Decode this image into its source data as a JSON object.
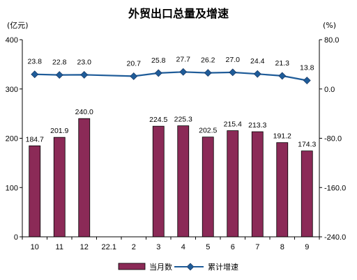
{
  "chart_data": {
    "type": "bar+line",
    "title": "外贸出口总量及增速",
    "left_axis_unit": "(亿元)",
    "right_axis_unit": "(%)",
    "categories": [
      "10",
      "11",
      "12",
      "22.1",
      "2",
      "3",
      "4",
      "5",
      "6",
      "7",
      "8",
      "9"
    ],
    "series": [
      {
        "name": "当月数",
        "kind": "bar",
        "axis": "left",
        "color": "#8B2A57",
        "values": [
          184.7,
          201.9,
          240.0,
          null,
          null,
          224.5,
          225.3,
          202.5,
          215.4,
          213.3,
          191.2,
          174.3
        ],
        "labels": [
          "184.7",
          "201.9",
          "240.0",
          "",
          "",
          "224.5",
          "225.3",
          "202.5",
          "215.4",
          "213.3",
          "191.2",
          "174.3"
        ]
      },
      {
        "name": "累计增速",
        "kind": "line",
        "axis": "right",
        "color": "#1F5C99",
        "values": [
          23.8,
          22.8,
          23.0,
          null,
          20.7,
          25.8,
          27.7,
          26.2,
          27.0,
          24.4,
          21.3,
          13.8
        ],
        "labels": [
          "23.8",
          "22.8",
          "23.0",
          "",
          "20.7",
          "25.8",
          "27.7",
          "26.2",
          "27.0",
          "24.4",
          "21.3",
          "13.8"
        ]
      }
    ],
    "left_axis": {
      "min": 0,
      "max": 400,
      "ticks": [
        0,
        100,
        200,
        300,
        400
      ],
      "tick_labels": [
        "0",
        "100",
        "200",
        "300",
        "400"
      ]
    },
    "right_axis": {
      "min": -240,
      "max": 80,
      "ticks": [
        -240,
        -160,
        -80,
        0,
        80
      ],
      "tick_labels": [
        "-240.0",
        "-160.0",
        "-80.0",
        "0.0",
        "80.0"
      ]
    },
    "grid": false,
    "legend_position": "bottom-center"
  }
}
